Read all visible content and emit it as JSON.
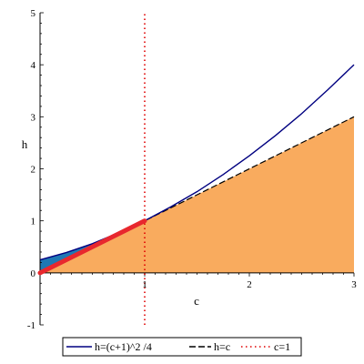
{
  "chart_data": {
    "type": "line",
    "title": "",
    "xlabel": "c",
    "ylabel": "h",
    "xlim": [
      0,
      3
    ],
    "ylim": [
      -1,
      5
    ],
    "x_ticks": [
      "1",
      "2",
      "3"
    ],
    "y_ticks": [
      "-1",
      "0",
      "1",
      "2",
      "3",
      "4",
      "5"
    ],
    "series": [
      {
        "name": "h=(c+1)^2 /4",
        "style": "solid",
        "color": "#000080",
        "x": [
          0,
          0.25,
          0.5,
          0.75,
          1,
          1.25,
          1.5,
          1.75,
          2,
          2.25,
          2.5,
          2.75,
          3
        ],
        "y": [
          0.25,
          0.39,
          0.56,
          0.77,
          1.0,
          1.27,
          1.56,
          1.89,
          2.25,
          2.64,
          3.06,
          3.52,
          4.0
        ]
      },
      {
        "name": "h=c",
        "style": "dashed",
        "color": "#000000",
        "x": [
          0,
          3
        ],
        "y": [
          0,
          3
        ]
      },
      {
        "name": "c=1",
        "style": "dotted",
        "color": "#e00000",
        "x": [
          1,
          1
        ],
        "y": [
          -1,
          5
        ]
      }
    ],
    "highlight_segment": {
      "x": [
        0,
        1
      ],
      "y": [
        0,
        1
      ],
      "color": "#e8282e"
    },
    "fills": {
      "under_line_color": "#f9ab5e",
      "between_curves_color": "#1f78b4",
      "between_curves_xrange": [
        0,
        1
      ]
    },
    "legend_position": "bottom"
  }
}
